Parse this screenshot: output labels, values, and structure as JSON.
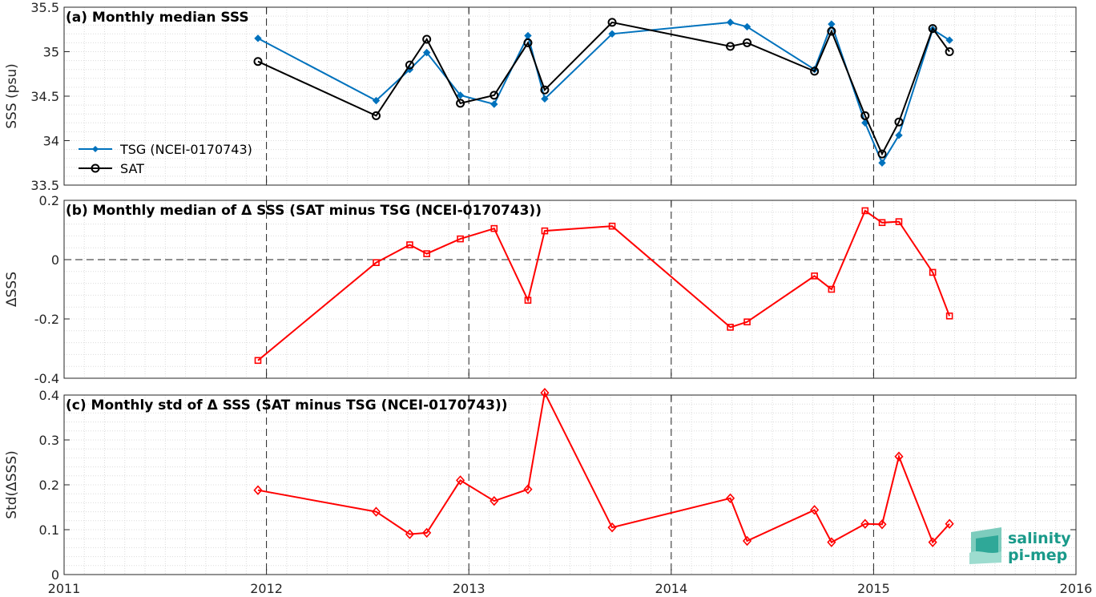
{
  "chart_data": [
    {
      "type": "line",
      "title": "(a) Monthly median SSS",
      "ylabel": "SSS (psu)",
      "xlim": [
        2011,
        2016
      ],
      "ylim": [
        33.5,
        35.5
      ],
      "yticks": [
        33.5,
        34,
        34.5,
        35,
        35.5
      ],
      "ytick_labels": [
        "33.5",
        "34",
        "34.5",
        "35",
        "35.5"
      ],
      "grid": true,
      "legend": "lower-left",
      "series": [
        {
          "name": "TSG (NCEI-0170743)",
          "color": "#0072bd",
          "marker": "filled-diamond",
          "x": [
            2011.958,
            2012.542,
            2012.708,
            2012.792,
            2012.958,
            2013.125,
            2013.292,
            2013.375,
            2013.708,
            2014.292,
            2014.375,
            2014.708,
            2014.792,
            2014.958,
            2015.042,
            2015.125,
            2015.292,
            2015.375
          ],
          "values": [
            35.15,
            34.45,
            34.8,
            34.99,
            34.51,
            34.41,
            35.18,
            34.47,
            35.2,
            35.33,
            35.28,
            34.8,
            35.31,
            34.2,
            33.75,
            34.06,
            35.25,
            35.13
          ]
        },
        {
          "name": "SAT",
          "color": "#000000",
          "marker": "open-circle",
          "x": [
            2011.958,
            2012.542,
            2012.708,
            2012.792,
            2012.958,
            2013.125,
            2013.292,
            2013.375,
            2013.708,
            2014.292,
            2014.375,
            2014.708,
            2014.792,
            2014.958,
            2015.042,
            2015.125,
            2015.292,
            2015.375
          ],
          "values": [
            34.89,
            34.28,
            34.85,
            35.14,
            34.42,
            34.51,
            35.1,
            34.57,
            35.33,
            35.06,
            35.1,
            34.78,
            35.23,
            34.28,
            33.85,
            34.21,
            35.26,
            35.0
          ]
        }
      ]
    },
    {
      "type": "line",
      "title": "(b) Monthly median of Δ SSS (SAT minus TSG (NCEI-0170743))",
      "ylabel": "ΔSSS",
      "xlim": [
        2011,
        2016
      ],
      "ylim": [
        -0.4,
        0.2
      ],
      "yticks": [
        -0.4,
        -0.2,
        0,
        0.2
      ],
      "ytick_labels": [
        "-0.4",
        "-0.2",
        "0",
        "0.2"
      ],
      "grid": true,
      "series": [
        {
          "name": "",
          "color": "#ff0000",
          "marker": "open-square",
          "x": [
            2011.958,
            2012.542,
            2012.708,
            2012.792,
            2012.958,
            2013.125,
            2013.292,
            2013.375,
            2013.708,
            2014.292,
            2014.375,
            2014.708,
            2014.792,
            2014.958,
            2015.042,
            2015.125,
            2015.292,
            2015.375
          ],
          "values": [
            -0.34,
            -0.01,
            0.05,
            0.02,
            0.07,
            0.105,
            -0.137,
            0.097,
            0.113,
            -0.228,
            -0.21,
            -0.055,
            -0.1,
            0.165,
            0.125,
            0.128,
            -0.043,
            -0.19
          ]
        }
      ]
    },
    {
      "type": "line",
      "title": "(c) Monthly std of Δ SSS (SAT minus TSG (NCEI-0170743))",
      "ylabel": "Std(ΔSSS)",
      "xlabel": "",
      "xlim": [
        2011,
        2016
      ],
      "ylim": [
        0,
        0.4
      ],
      "yticks": [
        0,
        0.1,
        0.2,
        0.3,
        0.4
      ],
      "ytick_labels": [
        "0",
        "0.1",
        "0.2",
        "0.3",
        "0.4"
      ],
      "xticks": [
        2011,
        2012,
        2013,
        2014,
        2015,
        2016
      ],
      "xtick_labels": [
        "2011",
        "2012",
        "2013",
        "2014",
        "2015",
        "2016"
      ],
      "grid": true,
      "series": [
        {
          "name": "",
          "color": "#ff0000",
          "marker": "open-diamond",
          "x": [
            2011.958,
            2012.542,
            2012.708,
            2012.792,
            2012.958,
            2013.125,
            2013.292,
            2013.375,
            2013.708,
            2014.292,
            2014.375,
            2014.708,
            2014.792,
            2014.958,
            2015.042,
            2015.125,
            2015.292,
            2015.375
          ],
          "values": [
            0.188,
            0.14,
            0.09,
            0.093,
            0.21,
            0.164,
            0.19,
            0.405,
            0.105,
            0.17,
            0.075,
            0.144,
            0.072,
            0.113,
            0.112,
            0.263,
            0.072,
            0.113
          ]
        }
      ]
    }
  ],
  "logo": {
    "line1": "salinity",
    "line2": "pi-mep",
    "color": "#1a9a8a"
  }
}
